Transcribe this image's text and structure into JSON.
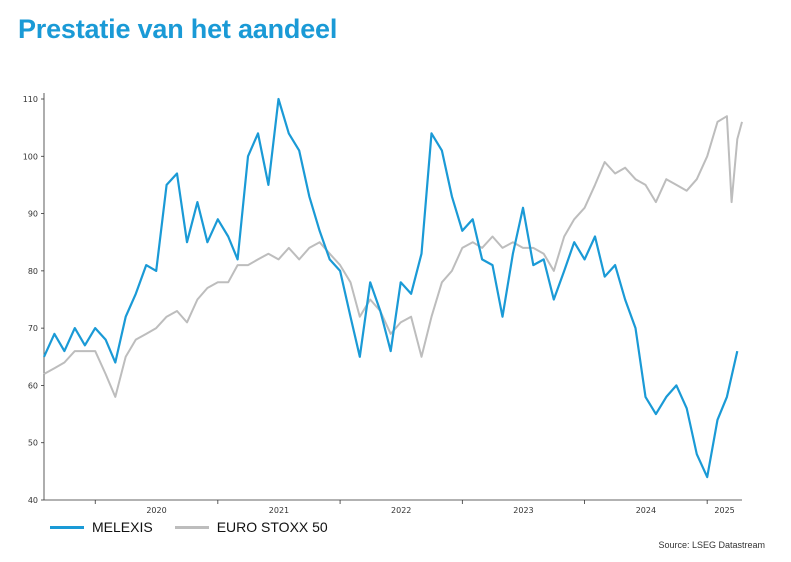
{
  "page": {
    "title": "Prestatie van het aandeel",
    "source": "Source: LSEG Datastream"
  },
  "chart_data": {
    "type": "line",
    "title": "Prestatie van het aandeel",
    "xlabel": "",
    "ylabel": "",
    "ylim": [
      40,
      110
    ],
    "xlim": [
      "2019-08-01",
      "2025-04-15"
    ],
    "yticks": [
      40,
      50,
      60,
      70,
      80,
      90,
      100,
      110
    ],
    "xticks": [
      {
        "label": "2020",
        "x": "2020-01-01"
      },
      {
        "label": "2021",
        "x": "2021-01-01"
      },
      {
        "label": "2022",
        "x": "2022-01-01"
      },
      {
        "label": "2023",
        "x": "2023-01-01"
      },
      {
        "label": "2024",
        "x": "2024-01-01"
      },
      {
        "label": "2025",
        "x": "2025-01-01"
      }
    ],
    "grid": false,
    "legend_position": "bottom-left",
    "series": [
      {
        "name": "MELEXIS",
        "color": "#1a9ad6",
        "points": [
          [
            "2019-08-01",
            65
          ],
          [
            "2019-09-01",
            69
          ],
          [
            "2019-10-01",
            66
          ],
          [
            "2019-11-01",
            70
          ],
          [
            "2019-12-01",
            67
          ],
          [
            "2020-01-01",
            70
          ],
          [
            "2020-02-01",
            68
          ],
          [
            "2020-03-01",
            64
          ],
          [
            "2020-04-01",
            72
          ],
          [
            "2020-05-01",
            76
          ],
          [
            "2020-06-01",
            81
          ],
          [
            "2020-07-01",
            80
          ],
          [
            "2020-08-01",
            95
          ],
          [
            "2020-09-01",
            97
          ],
          [
            "2020-10-01",
            85
          ],
          [
            "2020-11-01",
            92
          ],
          [
            "2020-12-01",
            85
          ],
          [
            "2021-01-01",
            89
          ],
          [
            "2021-02-01",
            86
          ],
          [
            "2021-03-01",
            82
          ],
          [
            "2021-04-01",
            100
          ],
          [
            "2021-05-01",
            104
          ],
          [
            "2021-06-01",
            95
          ],
          [
            "2021-07-01",
            110
          ],
          [
            "2021-08-01",
            104
          ],
          [
            "2021-09-01",
            101
          ],
          [
            "2021-10-01",
            93
          ],
          [
            "2021-11-01",
            87
          ],
          [
            "2021-12-01",
            82
          ],
          [
            "2022-01-01",
            80
          ],
          [
            "2022-02-01",
            72
          ],
          [
            "2022-03-01",
            65
          ],
          [
            "2022-04-01",
            78
          ],
          [
            "2022-05-01",
            73
          ],
          [
            "2022-06-01",
            66
          ],
          [
            "2022-07-01",
            78
          ],
          [
            "2022-08-01",
            76
          ],
          [
            "2022-09-01",
            83
          ],
          [
            "2022-10-01",
            104
          ],
          [
            "2022-11-01",
            101
          ],
          [
            "2022-12-01",
            93
          ],
          [
            "2023-01-01",
            87
          ],
          [
            "2023-02-01",
            89
          ],
          [
            "2023-03-01",
            82
          ],
          [
            "2023-04-01",
            81
          ],
          [
            "2023-05-01",
            72
          ],
          [
            "2023-06-01",
            83
          ],
          [
            "2023-07-01",
            91
          ],
          [
            "2023-08-01",
            81
          ],
          [
            "2023-09-01",
            82
          ],
          [
            "2023-10-01",
            75
          ],
          [
            "2023-11-01",
            80
          ],
          [
            "2023-12-01",
            85
          ],
          [
            "2024-01-01",
            82
          ],
          [
            "2024-02-01",
            86
          ],
          [
            "2024-03-01",
            79
          ],
          [
            "2024-04-01",
            81
          ],
          [
            "2024-05-01",
            75
          ],
          [
            "2024-06-01",
            70
          ],
          [
            "2024-07-01",
            58
          ],
          [
            "2024-08-01",
            55
          ],
          [
            "2024-09-01",
            58
          ],
          [
            "2024-10-01",
            60
          ],
          [
            "2024-11-01",
            56
          ],
          [
            "2024-12-01",
            48
          ],
          [
            "2025-01-01",
            44
          ],
          [
            "2025-02-01",
            54
          ],
          [
            "2025-03-01",
            58
          ],
          [
            "2025-04-01",
            66
          ]
        ]
      },
      {
        "name": "EURO STOXX 50",
        "color": "#bdbdbd",
        "points": [
          [
            "2019-08-01",
            62
          ],
          [
            "2019-09-01",
            63
          ],
          [
            "2019-10-01",
            64
          ],
          [
            "2019-11-01",
            66
          ],
          [
            "2019-12-01",
            66
          ],
          [
            "2020-01-01",
            66
          ],
          [
            "2020-02-01",
            62
          ],
          [
            "2020-03-01",
            58
          ],
          [
            "2020-04-01",
            65
          ],
          [
            "2020-05-01",
            68
          ],
          [
            "2020-06-01",
            69
          ],
          [
            "2020-07-01",
            70
          ],
          [
            "2020-08-01",
            72
          ],
          [
            "2020-09-01",
            73
          ],
          [
            "2020-10-01",
            71
          ],
          [
            "2020-11-01",
            75
          ],
          [
            "2020-12-01",
            77
          ],
          [
            "2021-01-01",
            78
          ],
          [
            "2021-02-01",
            78
          ],
          [
            "2021-03-01",
            81
          ],
          [
            "2021-04-01",
            81
          ],
          [
            "2021-05-01",
            82
          ],
          [
            "2021-06-01",
            83
          ],
          [
            "2021-07-01",
            82
          ],
          [
            "2021-08-01",
            84
          ],
          [
            "2021-09-01",
            82
          ],
          [
            "2021-10-01",
            84
          ],
          [
            "2021-11-01",
            85
          ],
          [
            "2021-12-01",
            83
          ],
          [
            "2022-01-01",
            81
          ],
          [
            "2022-02-01",
            78
          ],
          [
            "2022-03-01",
            72
          ],
          [
            "2022-04-01",
            75
          ],
          [
            "2022-05-01",
            73
          ],
          [
            "2022-06-01",
            69
          ],
          [
            "2022-07-01",
            71
          ],
          [
            "2022-08-01",
            72
          ],
          [
            "2022-09-01",
            65
          ],
          [
            "2022-10-01",
            72
          ],
          [
            "2022-11-01",
            78
          ],
          [
            "2022-12-01",
            80
          ],
          [
            "2023-01-01",
            84
          ],
          [
            "2023-02-01",
            85
          ],
          [
            "2023-03-01",
            84
          ],
          [
            "2023-04-01",
            86
          ],
          [
            "2023-05-01",
            84
          ],
          [
            "2023-06-01",
            85
          ],
          [
            "2023-07-01",
            84
          ],
          [
            "2023-08-01",
            84
          ],
          [
            "2023-09-01",
            83
          ],
          [
            "2023-10-01",
            80
          ],
          [
            "2023-11-01",
            86
          ],
          [
            "2023-12-01",
            89
          ],
          [
            "2024-01-01",
            91
          ],
          [
            "2024-02-01",
            95
          ],
          [
            "2024-03-01",
            99
          ],
          [
            "2024-04-01",
            97
          ],
          [
            "2024-05-01",
            98
          ],
          [
            "2024-06-01",
            96
          ],
          [
            "2024-07-01",
            95
          ],
          [
            "2024-08-01",
            92
          ],
          [
            "2024-09-01",
            96
          ],
          [
            "2024-10-01",
            95
          ],
          [
            "2024-11-01",
            94
          ],
          [
            "2024-12-01",
            96
          ],
          [
            "2025-01-01",
            100
          ],
          [
            "2025-02-01",
            106
          ],
          [
            "2025-03-01",
            107
          ],
          [
            "2025-03-15",
            92
          ],
          [
            "2025-04-01",
            103
          ],
          [
            "2025-04-15",
            106
          ]
        ]
      }
    ]
  }
}
